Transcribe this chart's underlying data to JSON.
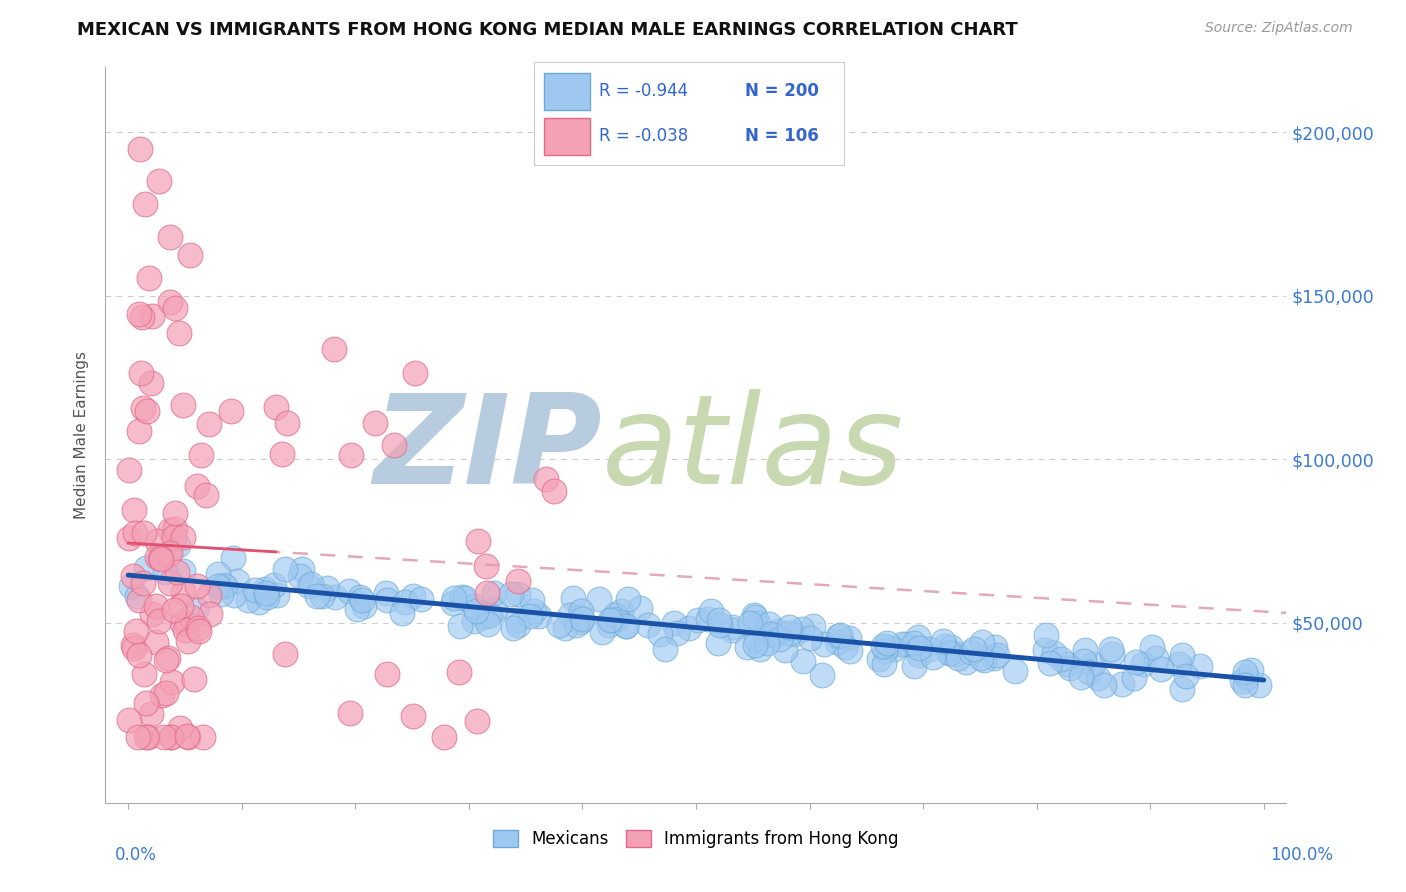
{
  "title": "MEXICAN VS IMMIGRANTS FROM HONG KONG MEDIAN MALE EARNINGS CORRELATION CHART",
  "source": "Source: ZipAtlas.com",
  "ylabel": "Median Male Earnings",
  "yticks": [
    0,
    50000,
    100000,
    150000,
    200000
  ],
  "ytick_labels": [
    "",
    "$50,000",
    "$100,000",
    "$150,000",
    "$200,000"
  ],
  "xlim": [
    -0.02,
    1.02
  ],
  "ylim": [
    -5000,
    220000
  ],
  "blue_color": "#9ec8f0",
  "blue_edge": "#6aaad8",
  "pink_color": "#f4a0b5",
  "pink_edge": "#e06888",
  "trend_blue_color": "#1a52a8",
  "trend_pink_solid_color": "#e05070",
  "trend_pink_dash_color": "#e0a0b0",
  "legend_text_color": "#3366cc",
  "watermark_zip_color": "#b8cce0",
  "watermark_atlas_color": "#c8d8b0",
  "background": "#ffffff",
  "blue_n": 200,
  "pink_n": 106,
  "blue_label": "Mexicans",
  "pink_label": "Immigrants from Hong Kong",
  "grid_color": "#cccccc",
  "spine_color": "#aaaaaa"
}
